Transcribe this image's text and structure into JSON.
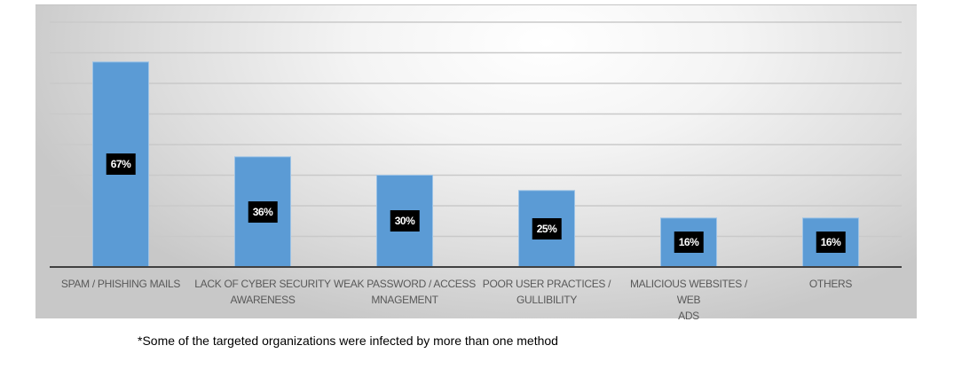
{
  "chart_data": {
    "type": "bar",
    "title": "",
    "xlabel": "",
    "ylabel": "",
    "ylim": [
      0,
      80
    ],
    "grid": true,
    "gridline_step": 10,
    "categories": [
      [
        "SPAM / PHISHING MAILS"
      ],
      [
        "LACK OF CYBER SECURITY",
        "AWARENESS"
      ],
      [
        "WEAK PASSWORD / ACCESS",
        "MNAGEMENT"
      ],
      [
        "POOR USER PRACTICES /",
        "GULLIBILITY"
      ],
      [
        "MALICIOUS WEBSITES / WEB",
        "ADS"
      ],
      [
        "OTHERS"
      ]
    ],
    "values": [
      67,
      36,
      30,
      25,
      16,
      16
    ],
    "data_labels": [
      "67%",
      "36%",
      "30%",
      "25%",
      "16%",
      "16%"
    ],
    "colors": {
      "bar": "#5b9bd5",
      "bar_border": "#9dc3e6",
      "gridline": "#c9c9c9",
      "axis": "#404040",
      "label_bg": "#000000",
      "label_text": "#ffffff",
      "tick_text": "#595959"
    }
  },
  "footnote": "*Some of the targeted organizations were infected by more than one method"
}
